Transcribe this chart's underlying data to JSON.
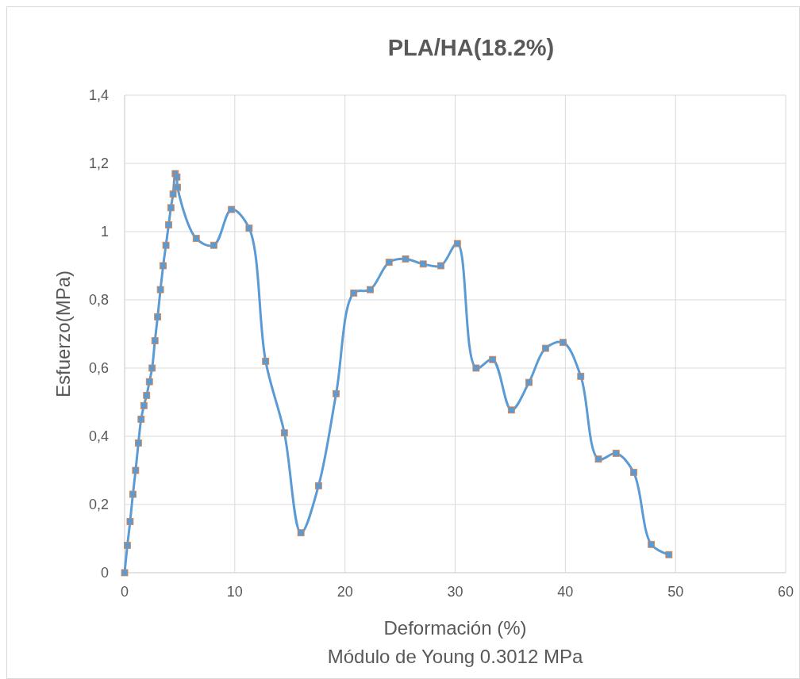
{
  "chart_data": {
    "type": "line",
    "title": "PLA/HA(18.2%)",
    "xlabel": "Deformación (%)",
    "ylabel": "Esfuerzo(MPa)",
    "annotations": [
      "Módulo de Young 0.3012 MPa"
    ],
    "xlim": [
      0,
      60
    ],
    "xticks": [
      0,
      10,
      20,
      30,
      40,
      50,
      60
    ],
    "ylim": [
      0,
      1.4
    ],
    "yticks": [
      0,
      {
        "value": 0.2,
        "label": "0,2"
      },
      {
        "value": 0.4,
        "label": "0,4"
      },
      {
        "value": 0.6,
        "label": "0,6"
      },
      {
        "value": 0.8,
        "label": "0,8"
      },
      1,
      {
        "value": 1.2,
        "label": "1,2"
      },
      {
        "value": 1.4,
        "label": "1,4"
      }
    ],
    "grid": true,
    "marker": "square",
    "series": [
      {
        "color": "#5b9bd5",
        "x": [
          0,
          0.25,
          0.5,
          0.75,
          1,
          1.25,
          1.5,
          1.75,
          2,
          2.25,
          2.5,
          2.75,
          3,
          3.25,
          3.5,
          3.75,
          4,
          4.2,
          4.4,
          4.6,
          4.75,
          4.8,
          6.5,
          8.1,
          9.7,
          11.3,
          12.8,
          14.5,
          16,
          17.6,
          19.2,
          20.8,
          22.3,
          24,
          25.5,
          27.1,
          28.7,
          30.2,
          31.9,
          33.4,
          35.1,
          36.7,
          38.2,
          39.8,
          41.4,
          43,
          44.6,
          46.2,
          47.8,
          49.4
        ],
        "values": [
          0,
          0.08,
          0.15,
          0.23,
          0.3,
          0.38,
          0.45,
          0.49,
          0.52,
          0.56,
          0.6,
          0.68,
          0.75,
          0.83,
          0.9,
          0.96,
          1.02,
          1.07,
          1.11,
          1.17,
          1.16,
          1.13,
          0.98,
          0.96,
          1.065,
          1.01,
          0.62,
          0.41,
          0.117,
          0.255,
          0.525,
          0.82,
          0.83,
          0.91,
          0.92,
          0.905,
          0.9,
          0.965,
          0.6,
          0.625,
          0.477,
          0.558,
          0.658,
          0.675,
          0.576,
          0.333,
          0.35,
          0.294,
          0.083,
          0.053
        ]
      }
    ]
  }
}
